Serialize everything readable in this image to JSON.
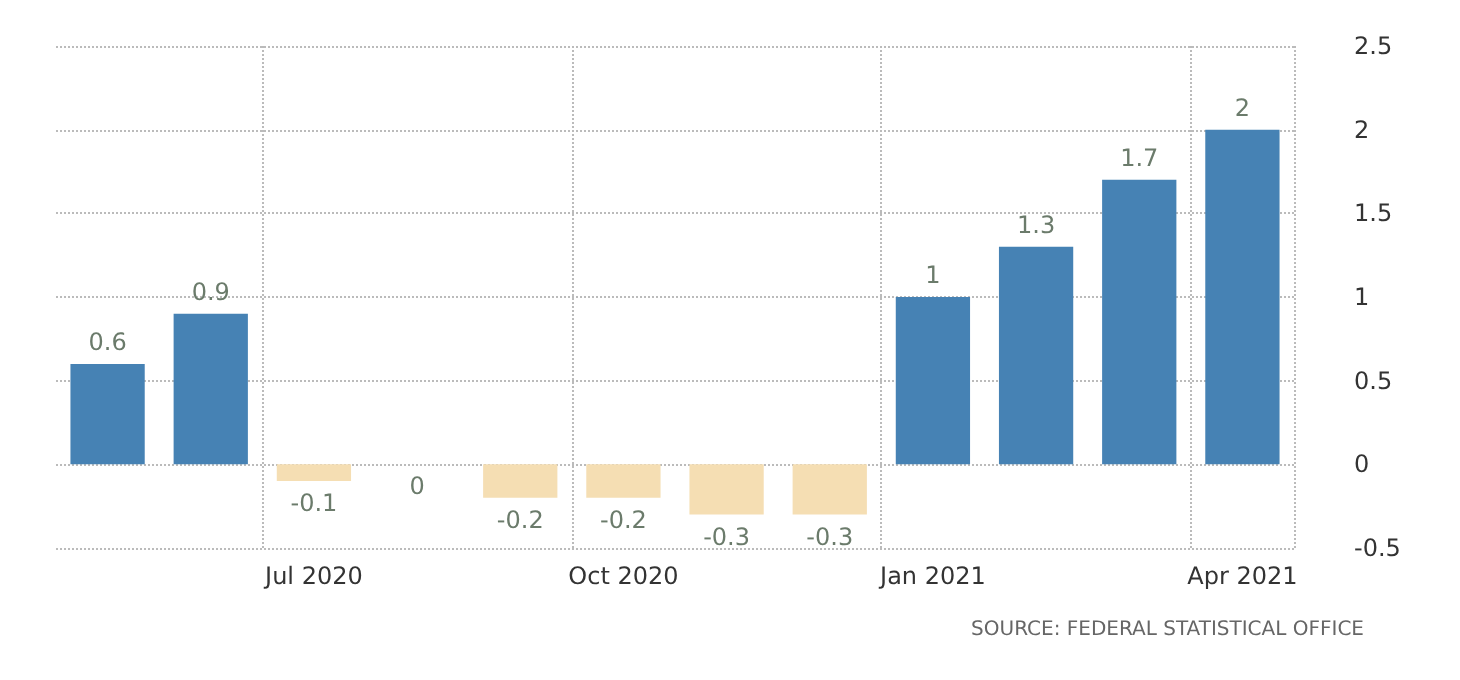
{
  "chart_data": {
    "type": "bar",
    "categories": [
      null,
      null,
      "Jul 2020",
      null,
      null,
      "Oct 2020",
      null,
      null,
      "Jan 2021",
      null,
      null,
      "Apr 2021"
    ],
    "values": [
      0.6,
      0.9,
      -0.1,
      0,
      -0.2,
      -0.2,
      -0.3,
      -0.3,
      1,
      1.3,
      1.7,
      2
    ],
    "colors": [
      "#4682b4",
      "#4682b4",
      "#f5deb3",
      "#4682b4",
      "#f5deb3",
      "#f5deb3",
      "#f5deb3",
      "#f5deb3",
      "#4682b4",
      "#4682b4",
      "#4682b4",
      "#4682b4"
    ],
    "ylim": [
      -0.5,
      2.5
    ],
    "yticks": [
      -0.5,
      0,
      0.5,
      1,
      1.5,
      2,
      2.5
    ],
    "grid": true,
    "data_labels": true,
    "annotations": [
      "SOURCE: FEDERAL STATISTICAL OFFICE"
    ]
  }
}
